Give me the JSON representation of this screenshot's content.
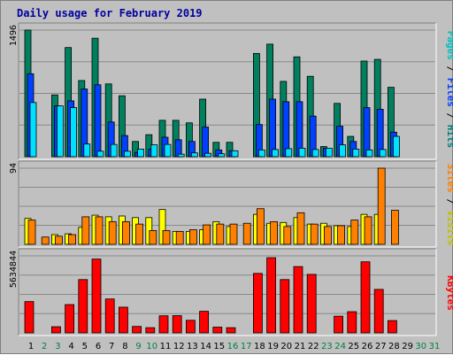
{
  "title": "Daily usage for February 2019",
  "colors": {
    "hits": "#00805f",
    "files": "#0040ff",
    "pages": "#00e0ff",
    "visits": "#ffff00",
    "sites": "#ff8000",
    "kbytes": "#ff0000",
    "weekday_tick": "#000000",
    "weekend_tick": "#008040"
  },
  "legend": {
    "top": [
      {
        "text": "Pages",
        "color": "#00c0c0"
      },
      {
        "text": " / ",
        "color": "#000000"
      },
      {
        "text": "Files",
        "color": "#0040ff"
      },
      {
        "text": " / ",
        "color": "#000000"
      },
      {
        "text": "Hits",
        "color": "#008080"
      }
    ],
    "middle": [
      {
        "text": "Sites",
        "color": "#ff8000"
      },
      {
        "text": " / ",
        "color": "#000000"
      },
      {
        "text": "Visits",
        "color": "#c0c000"
      }
    ],
    "bottom": [
      {
        "text": "KBytes",
        "color": "#ff0000"
      }
    ]
  },
  "chart_data": {
    "type": "bar",
    "title": "Daily usage for February 2019",
    "days": [
      "1",
      "2",
      "3",
      "4",
      "5",
      "6",
      "7",
      "8",
      "9",
      "10",
      "11",
      "12",
      "13",
      "14",
      "15",
      "16",
      "17",
      "18",
      "19",
      "20",
      "21",
      "22",
      "23",
      "24",
      "25",
      "26",
      "27",
      "28",
      "29",
      "30",
      "31"
    ],
    "weekend_days": [
      "2",
      "3",
      "9",
      "10",
      "16",
      "17",
      "23",
      "24",
      "30",
      "31"
    ],
    "panels": [
      {
        "name": "hits-files-pages",
        "ymax_label": "1496",
        "ymax": 1496,
        "series": [
          {
            "name": "Hits",
            "values": [
              1496,
              0,
              730,
              1290,
              900,
              1400,
              860,
              720,
              180,
              260,
              430,
              430,
              400,
              680,
              170,
              170,
              0,
              1220,
              1330,
              890,
              1180,
              950,
              120,
              630,
              240,
              1130,
              1150,
              820,
              0,
              0,
              0
            ]
          },
          {
            "name": "Files",
            "values": [
              980,
              0,
              600,
              660,
              800,
              850,
              410,
              250,
              50,
              90,
              230,
              200,
              180,
              350,
              80,
              70,
              0,
              380,
              680,
              650,
              650,
              480,
              100,
              360,
              180,
              580,
              560,
              290,
              0,
              0,
              0
            ]
          },
          {
            "name": "Pages",
            "values": [
              640,
              0,
              600,
              580,
              150,
              65,
              145,
              65,
              90,
              140,
              145,
              30,
              45,
              40,
              35,
              70,
              0,
              80,
              85,
              95,
              100,
              85,
              100,
              140,
              90,
              80,
              85,
              240,
              0,
              0,
              0
            ]
          }
        ]
      },
      {
        "name": "visits-sites",
        "ymax_label": "94",
        "ymax": 94,
        "series": [
          {
            "name": "Visits",
            "values": [
              32,
              0,
              12,
              13,
              21,
              36,
              34,
              35,
              33,
              33,
              43,
              16,
              16,
              18,
              28,
              22,
              0,
              37,
              26,
              27,
              33,
              25,
              26,
              23,
              22,
              37,
              37,
              0,
              0,
              0,
              0
            ]
          },
          {
            "name": "Sites",
            "values": [
              30,
              9,
              10,
              12,
              34,
              34,
              28,
              28,
              25,
              17,
              17,
              16,
              18,
              24,
              25,
              25,
              26,
              44,
              28,
              22,
              39,
              25,
              22,
              23,
              30,
              34,
              94,
              42,
              0,
              0,
              0
            ]
          }
        ]
      },
      {
        "name": "kbytes",
        "ymax_label": "5634844",
        "ymax": 5634844,
        "series": [
          {
            "name": "KBytes",
            "values": [
              2290000,
              0,
              450000,
              2070000,
              3900000,
              5400000,
              2480000,
              1880000,
              470000,
              380000,
              1250000,
              1260000,
              920000,
              1580000,
              420000,
              380000,
              0,
              4350000,
              5500000,
              3900000,
              4850000,
              4280000,
              0,
              1220000,
              1550000,
              5200000,
              3180000,
              900000,
              0,
              0,
              0
            ]
          }
        ]
      }
    ]
  }
}
